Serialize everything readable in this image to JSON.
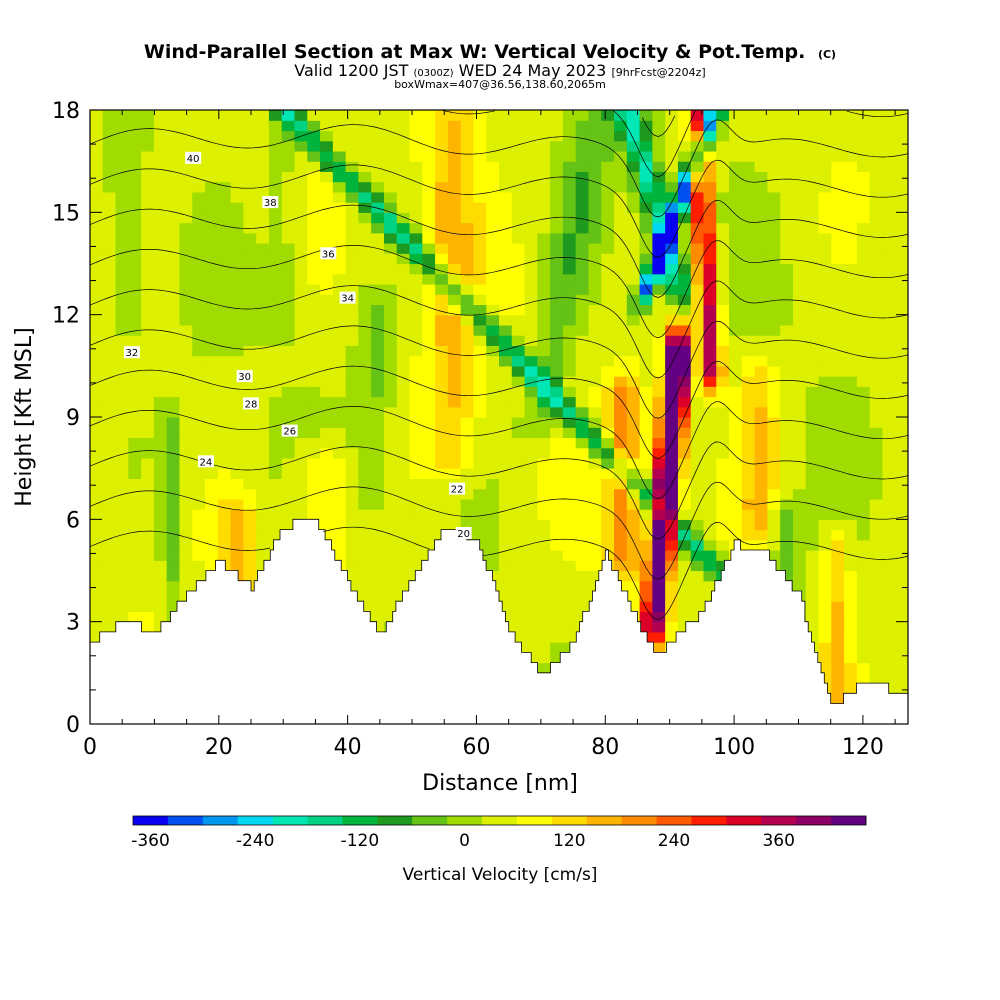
{
  "header": {
    "title": "Wind-Parallel Section at Max W: Vertical Velocity & Pot.Temp.",
    "title_mark": "(C)",
    "valid_prefix": "Valid 1200 JST",
    "valid_zulu": "(0300Z)",
    "valid_date": "WED 24 May 2023",
    "forecast": "[9hrFcst@2204z]",
    "box_info": "boxWmax=407@36.56,138.60,2065m"
  },
  "chart_data": {
    "type": "heatmap",
    "xlabel": "Distance [nm]",
    "ylabel": "Height [Kft MSL]",
    "xlim": [
      0,
      127
    ],
    "ylim": [
      0,
      18
    ],
    "x_ticks": [
      0,
      20,
      40,
      60,
      80,
      100,
      120
    ],
    "y_ticks": [
      0,
      3,
      6,
      9,
      12,
      15,
      18
    ],
    "grid": false,
    "field": "Vertical Velocity [cm/s]",
    "colorbar": {
      "label": "Vertical Velocity [cm/s]",
      "tick_labels": [
        "-360",
        "-240",
        "-120",
        "0",
        "120",
        "240",
        "360"
      ],
      "colors": [
        "#0a00f0",
        "#0050f0",
        "#0096f0",
        "#00d7f0",
        "#00e6b4",
        "#00d284",
        "#00b43c",
        "#1e9b1e",
        "#64c314",
        "#a0dc00",
        "#dcf000",
        "#ffff00",
        "#ffdc00",
        "#ffb400",
        "#ff8c00",
        "#ff5a00",
        "#ff1e00",
        "#dc0028",
        "#b40050",
        "#8c0064",
        "#640082"
      ]
    },
    "terrain_profile": {
      "x": [
        0,
        5,
        10,
        15,
        20,
        25,
        30,
        35,
        40,
        45,
        50,
        55,
        60,
        65,
        70,
        75,
        80,
        85,
        88,
        90,
        95,
        100,
        105,
        110,
        115,
        120,
        125,
        127
      ],
      "height": [
        2.4,
        3.0,
        2.7,
        3.8,
        4.8,
        4.0,
        5.8,
        6.0,
        4.2,
        2.6,
        4.3,
        5.8,
        5.4,
        2.8,
        1.4,
        2.4,
        5.0,
        3.0,
        2.0,
        2.4,
        3.3,
        5.3,
        5.0,
        3.8,
        0.5,
        1.2,
        1.0,
        1.0
      ]
    },
    "wvel_features": [
      {
        "x": 87.5,
        "ybot": 3.0,
        "ytop": 10.5,
        "tilt": 0.5,
        "width": 1.8,
        "w": 380
      },
      {
        "x": 89.5,
        "ybot": 6.0,
        "ytop": 11.0,
        "tilt": 0.3,
        "width": 1.5,
        "w": 300
      },
      {
        "x": 96.5,
        "ybot": 10.5,
        "ytop": 18.0,
        "tilt": -0.3,
        "width": 1.6,
        "w": 300
      },
      {
        "x": 83.0,
        "ybot": 5.0,
        "ytop": 9.5,
        "tilt": 0.0,
        "width": 2.5,
        "w": 150
      },
      {
        "x": 100.0,
        "ybot": 4.0,
        "ytop": 18.0,
        "tilt": -5.0,
        "width": 2.5,
        "w": -180
      },
      {
        "x": 87.0,
        "ybot": 13.0,
        "ytop": 18.0,
        "tilt": 2.0,
        "width": 1.5,
        "w": -360
      },
      {
        "x": 91.0,
        "ybot": 13.0,
        "ytop": 18.0,
        "tilt": -1.5,
        "width": 2.2,
        "w": -200
      },
      {
        "x": 56.0,
        "ybot": 8.0,
        "ytop": 18.0,
        "tilt": 0.0,
        "width": 4.0,
        "w": 90
      },
      {
        "x": 70.0,
        "ybot": 9.0,
        "ytop": 18.0,
        "tilt": 1.0,
        "width": 3.5,
        "w": -70
      },
      {
        "x": 36.0,
        "ybot": 5.0,
        "ytop": 7.5,
        "tilt": 0.0,
        "width": 4.0,
        "w": 80
      },
      {
        "x": 44.0,
        "ybot": 7.0,
        "ytop": 12.0,
        "tilt": 0.0,
        "width": 3.0,
        "w": -60
      },
      {
        "x": 12.5,
        "ybot": 3.0,
        "ytop": 8.5,
        "tilt": 0.0,
        "width": 1.5,
        "w": -70
      },
      {
        "x": 23.0,
        "ybot": 4.0,
        "ytop": 6.0,
        "tilt": 0.0,
        "width": 3.0,
        "w": 80
      },
      {
        "x": 104.0,
        "ybot": 6.0,
        "ytop": 10.0,
        "tilt": 0.0,
        "width": 3.0,
        "w": 90
      },
      {
        "x": 108.0,
        "ybot": 3.0,
        "ytop": 6.0,
        "tilt": 0.0,
        "width": 3.0,
        "w": -80
      },
      {
        "x": 116.0,
        "ybot": 1.0,
        "ytop": 5.0,
        "tilt": 0.0,
        "width": 2.0,
        "w": 90
      },
      {
        "x": 6.0,
        "ybot": 12.0,
        "ytop": 18.0,
        "tilt": 0.0,
        "width": 3.0,
        "w": -40
      },
      {
        "x": 30.0,
        "ybot": 12.0,
        "ytop": 18.0,
        "tilt": 0.0,
        "width": 3.0,
        "w": -40
      }
    ],
    "isentropes": [
      {
        "value": 20,
        "label_x": 58.0,
        "label_y": 5.6
      },
      {
        "value": 22,
        "label_x": 57.0,
        "label_y": 6.9
      },
      {
        "value": 24,
        "label_x": 18.0,
        "label_y": 7.7
      },
      {
        "value": 26,
        "label_x": 31.0,
        "label_y": 8.6
      },
      {
        "value": 28,
        "label_x": 25.0,
        "label_y": 9.4
      },
      {
        "value": 30,
        "label_x": 24.0,
        "label_y": 10.2
      },
      {
        "value": 32,
        "label_x": 6.5,
        "label_y": 10.9
      },
      {
        "value": 34,
        "label_x": 40.0,
        "label_y": 12.5
      },
      {
        "value": 36,
        "label_x": 37.0,
        "label_y": 13.8
      },
      {
        "value": 38,
        "label_x": 28.0,
        "label_y": 15.3
      },
      {
        "value": 40,
        "label_x": 16.0,
        "label_y": 16.6
      }
    ]
  }
}
